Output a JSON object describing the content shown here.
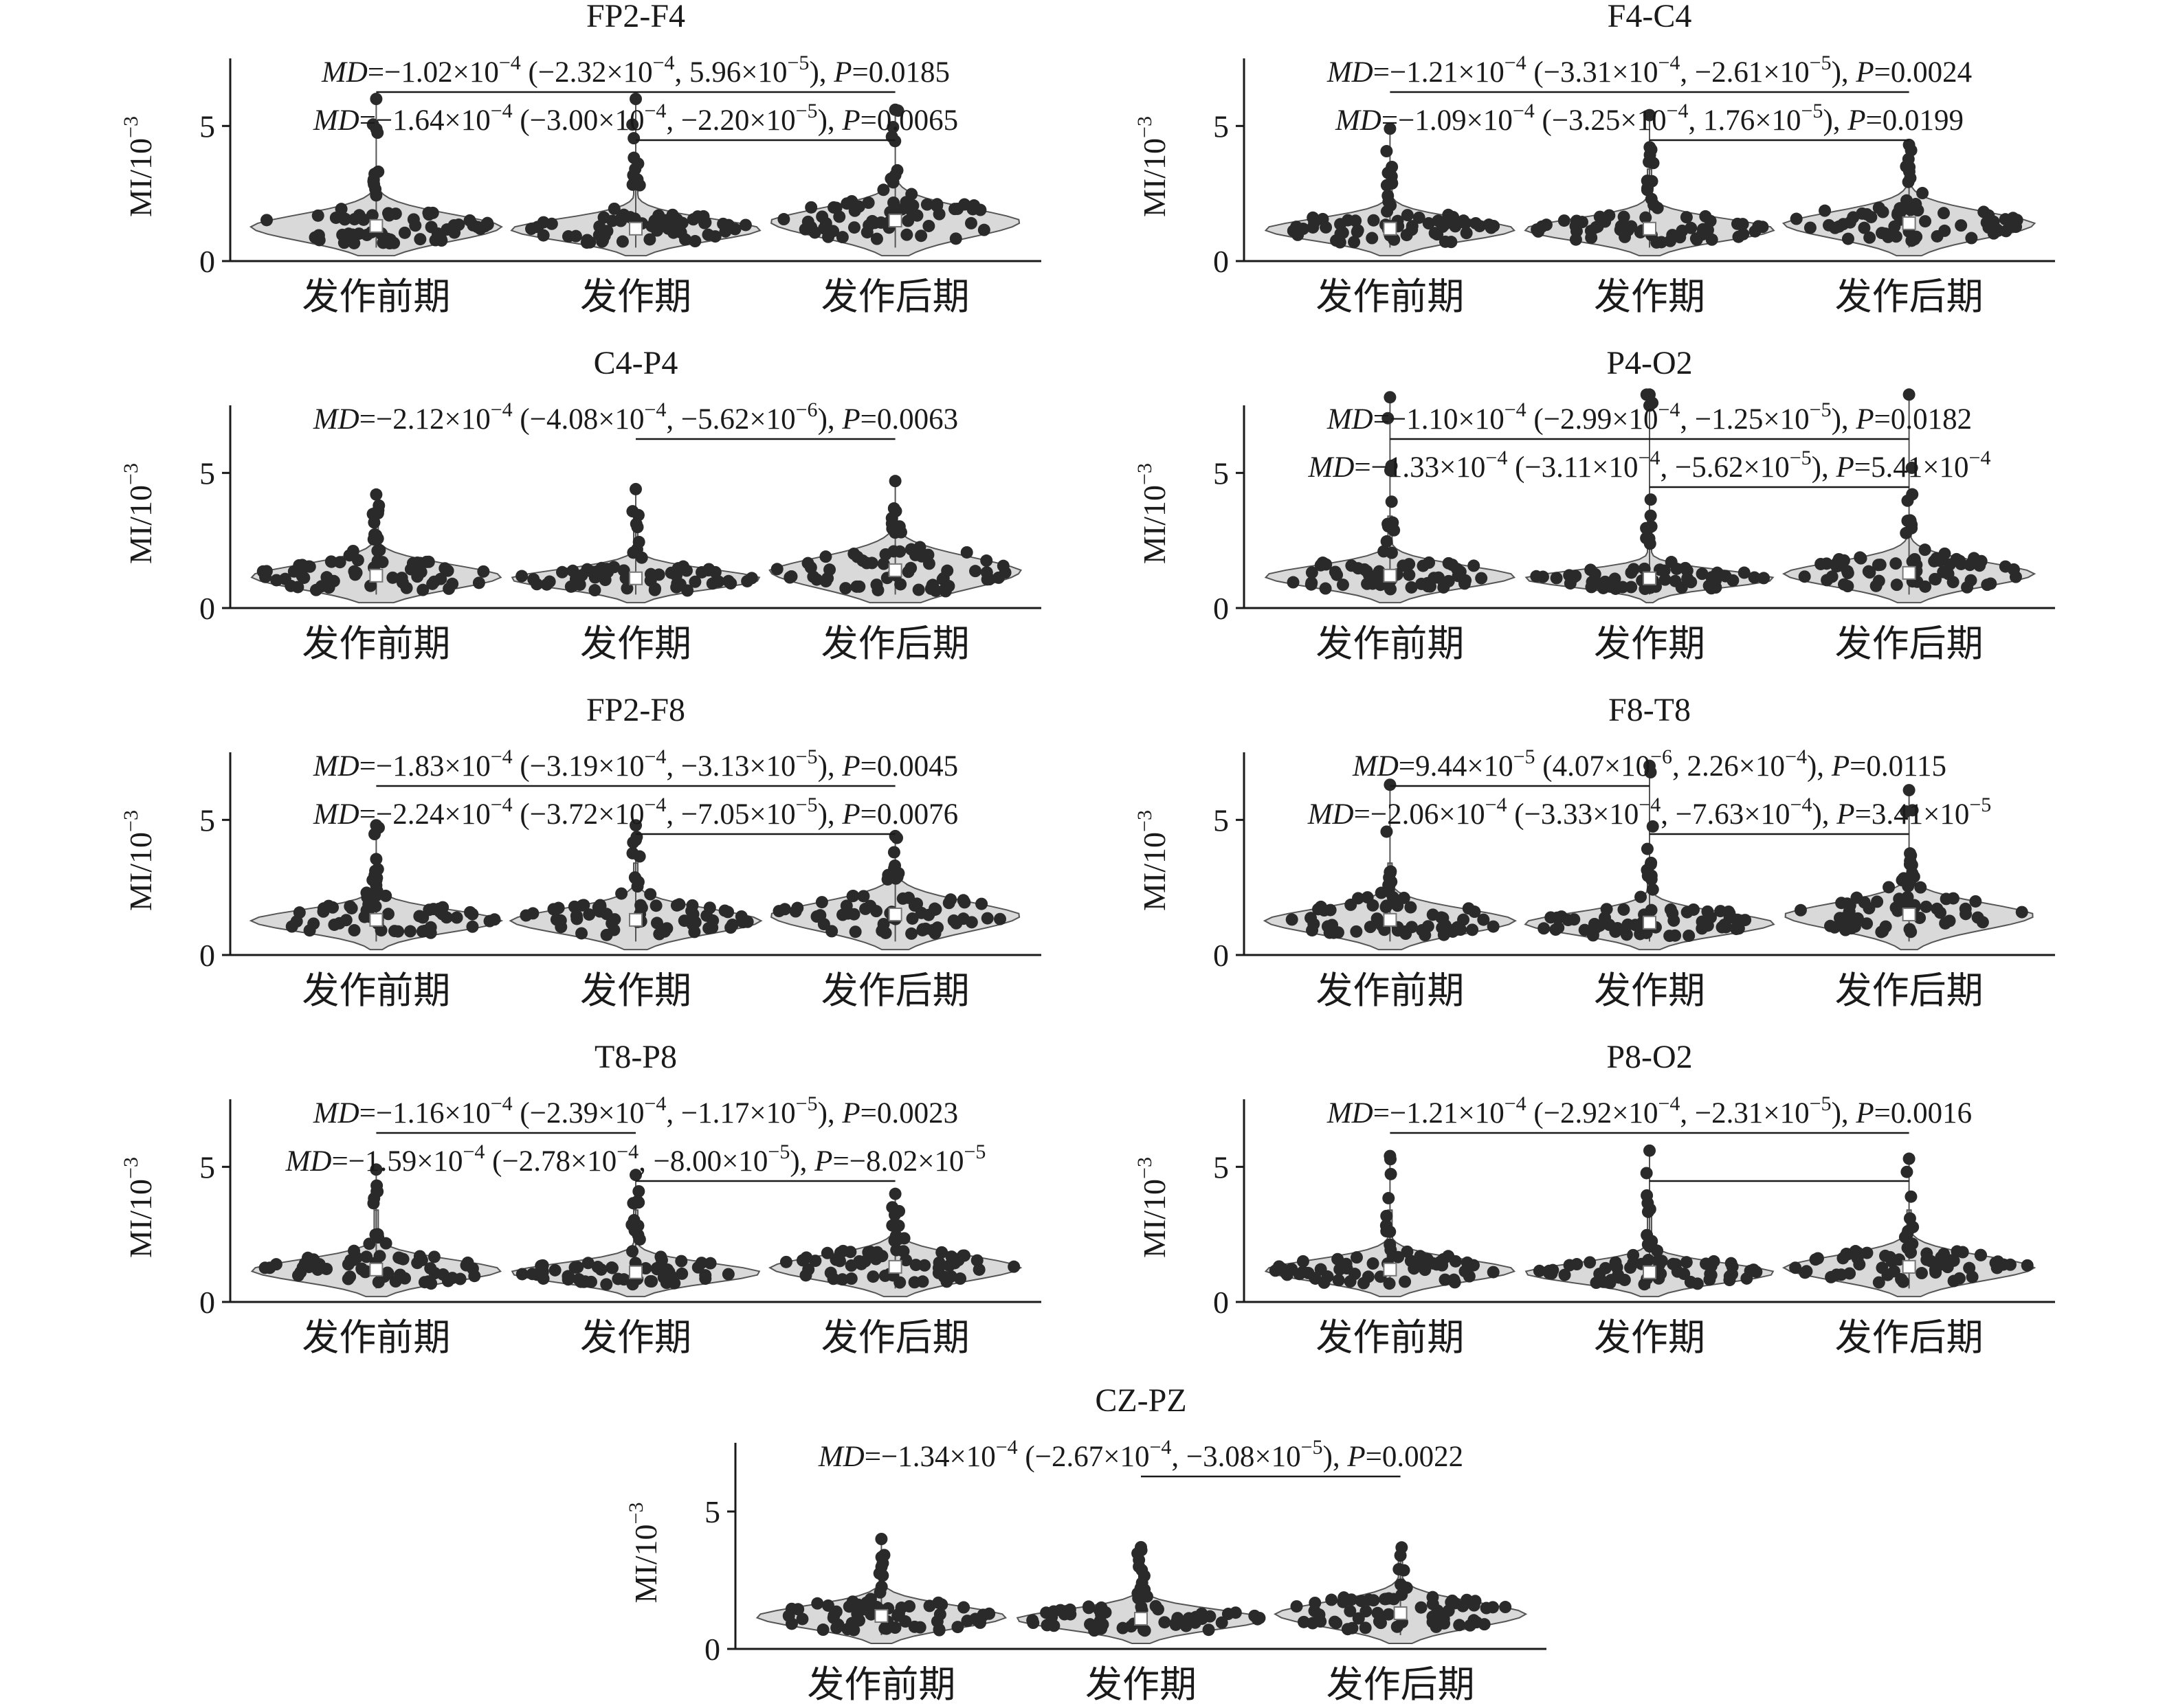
{
  "figure": {
    "y_label_main": "MI/10",
    "y_label_exp": "−3",
    "categories": [
      "发作前期",
      "发作期",
      "发作后期"
    ]
  },
  "chart_data": [
    {
      "type": "violin",
      "title": "FP2-F4",
      "categories": [
        "发作前期",
        "发作期",
        "发作后期"
      ],
      "ylim": [
        0,
        7.5
      ],
      "yticks": [
        0,
        5
      ],
      "medians": [
        1.3,
        1.2,
        1.5
      ],
      "max_points": [
        6.0,
        6.0,
        5.6
      ],
      "spread": [
        1.0,
        0.8,
        1.1
      ],
      "annotations": [
        {
          "lead": "MD",
          "text": "=−1.02×10",
          "exp": "−4",
          "text2": " (−2.32×10",
          "exp2": "−4",
          "text3": ", 5.96×10",
          "exp3": "−5",
          "text4": "), ",
          "plabel": "P",
          "ptext": "=0.0185",
          "ptext_exp": "",
          "from": 0,
          "to": 2
        },
        {
          "lead": "MD",
          "text": "=−1.64×10",
          "exp": "−4",
          "text2": " (−3.00×10",
          "exp2": "−4",
          "text3": ", −2.20×10",
          "exp3": "−5",
          "text4": "), ",
          "plabel": "P",
          "ptext": "=0.0065",
          "ptext_exp": "",
          "from": 1,
          "to": 2
        }
      ]
    },
    {
      "type": "violin",
      "title": "F4-C4",
      "categories": [
        "发作前期",
        "发作期",
        "发作后期"
      ],
      "ylim": [
        0,
        7.5
      ],
      "yticks": [
        0,
        5
      ],
      "medians": [
        1.2,
        1.2,
        1.4
      ],
      "max_points": [
        4.9,
        5.4,
        4.3
      ],
      "spread": [
        0.8,
        0.8,
        1.0
      ],
      "annotations": [
        {
          "lead": "MD",
          "text": "=−1.21×10",
          "exp": "−4",
          "text2": " (−3.31×10",
          "exp2": "−4",
          "text3": ", −2.61×10",
          "exp3": "−5",
          "text4": "), ",
          "plabel": "P",
          "ptext": "=0.0024",
          "ptext_exp": "",
          "from": 0,
          "to": 2
        },
        {
          "lead": "MD",
          "text": "=−1.09×10",
          "exp": "−4",
          "text2": " (−3.25×10",
          "exp2": "−4",
          "text3": ", 1.76×10",
          "exp3": "−5",
          "text4": "), ",
          "plabel": "P",
          "ptext": "=0.0199",
          "ptext_exp": "",
          "from": 1,
          "to": 2
        }
      ]
    },
    {
      "type": "violin",
      "title": "C4-P4",
      "categories": [
        "发作前期",
        "发作期",
        "发作后期"
      ],
      "ylim": [
        0,
        7.5
      ],
      "yticks": [
        0,
        5
      ],
      "medians": [
        1.2,
        1.1,
        1.4
      ],
      "max_points": [
        4.2,
        4.4,
        4.7
      ],
      "spread": [
        0.9,
        0.7,
        1.2
      ],
      "annotations": [
        {
          "lead": "MD",
          "text": "=−2.12×10",
          "exp": "−4",
          "text2": " (−4.08×10",
          "exp2": "−4",
          "text3": ", −5.62×10",
          "exp3": "−6",
          "text4": "), ",
          "plabel": "P",
          "ptext": "=0.0063",
          "ptext_exp": "",
          "from": 1,
          "to": 2
        }
      ]
    },
    {
      "type": "violin",
      "title": "P4-O2",
      "categories": [
        "发作前期",
        "发作期",
        "发作后期"
      ],
      "ylim": [
        0,
        7.5
      ],
      "yticks": [
        0,
        5
      ],
      "medians": [
        1.2,
        1.1,
        1.3
      ],
      "max_points": [
        7.8,
        7.9,
        7.9
      ],
      "spread": [
        0.8,
        0.6,
        0.9
      ],
      "annotations": [
        {
          "lead": "MD",
          "text": "=−1.10×10",
          "exp": "−4",
          "text2": " (−2.99×10",
          "exp2": "−4",
          "text3": ", −1.25×10",
          "exp3": "−5",
          "text4": "), ",
          "plabel": "P",
          "ptext": "=0.0182",
          "ptext_exp": "",
          "from": 0,
          "to": 2
        },
        {
          "lead": "MD",
          "text": "=−1.33×10",
          "exp": "−4",
          "text2": " (−3.11×10",
          "exp2": "−4",
          "text3": ", −5.62×10",
          "exp3": "−5",
          "text4": "), ",
          "plabel": "P",
          "ptext": "=5.41×10",
          "ptext_exp": "−4",
          "from": 1,
          "to": 2
        }
      ]
    },
    {
      "type": "violin",
      "title": "FP2-F8",
      "categories": [
        "发作前期",
        "发作期",
        "发作后期"
      ],
      "ylim": [
        0,
        7.5
      ],
      "yticks": [
        0,
        5
      ],
      "medians": [
        1.3,
        1.3,
        1.5
      ],
      "max_points": [
        4.8,
        4.8,
        4.4
      ],
      "spread": [
        0.8,
        0.9,
        1.1
      ],
      "annotations": [
        {
          "lead": "MD",
          "text": "=−1.83×10",
          "exp": "−4",
          "text2": " (−3.19×10",
          "exp2": "−4",
          "text3": ", −3.13×10",
          "exp3": "−5",
          "text4": "), ",
          "plabel": "P",
          "ptext": "=0.0045",
          "ptext_exp": "",
          "from": 0,
          "to": 2
        },
        {
          "lead": "MD",
          "text": "=−2.24×10",
          "exp": "−4",
          "text2": " (−3.72×10",
          "exp2": "−4",
          "text3": ", −7.05×10",
          "exp3": "−5",
          "text4": "), ",
          "plabel": "P",
          "ptext": "=0.0076",
          "ptext_exp": "",
          "from": 1,
          "to": 2
        }
      ]
    },
    {
      "type": "violin",
      "title": "F8-T8",
      "categories": [
        "发作前期",
        "发作期",
        "发作后期"
      ],
      "ylim": [
        0,
        7.5
      ],
      "yticks": [
        0,
        5
      ],
      "medians": [
        1.3,
        1.2,
        1.5
      ],
      "max_points": [
        6.3,
        7.0,
        6.1
      ],
      "spread": [
        0.9,
        0.8,
        1.0
      ],
      "annotations": [
        {
          "lead": "MD",
          "text": "=9.44×10",
          "exp": "−5",
          "text2": " (4.07×10",
          "exp2": "−6",
          "text3": ", 2.26×10",
          "exp3": "−4",
          "text4": "), ",
          "plabel": "P",
          "ptext": "=0.0115",
          "ptext_exp": "",
          "from": 0,
          "to": 1
        },
        {
          "lead": "MD",
          "text": "=−2.06×10",
          "exp": "−4",
          "text2": " (−3.33×10",
          "exp2": "−4",
          "text3": ", −7.63×10",
          "exp3": "−4",
          "text4": "), ",
          "plabel": "P",
          "ptext": "=3.41×10",
          "ptext_exp": "−5",
          "from": 1,
          "to": 2
        }
      ]
    },
    {
      "type": "violin",
      "title": "T8-P8",
      "categories": [
        "发作前期",
        "发作期",
        "发作后期"
      ],
      "ylim": [
        0,
        7.5
      ],
      "yticks": [
        0,
        5
      ],
      "medians": [
        1.2,
        1.1,
        1.3
      ],
      "max_points": [
        4.9,
        4.7,
        4.0
      ],
      "spread": [
        0.8,
        0.7,
        0.9
      ],
      "annotations": [
        {
          "lead": "MD",
          "text": "=−1.16×10",
          "exp": "−4",
          "text2": " (−2.39×10",
          "exp2": "−4",
          "text3": ", −1.17×10",
          "exp3": "−5",
          "text4": "), ",
          "plabel": "P",
          "ptext": "=0.0023",
          "ptext_exp": "",
          "from": 0,
          "to": 1
        },
        {
          "lead": "MD",
          "text": "=−1.59×10",
          "exp": "−4",
          "text2": " (−2.78×10",
          "exp2": "−4",
          "text3": ", −8.00×10",
          "exp3": "−5",
          "text4": "), ",
          "plabel": "P",
          "ptext": "=−8.02×10",
          "ptext_exp": "−5",
          "from": 1,
          "to": 2
        }
      ]
    },
    {
      "type": "violin",
      "title": "P8-O2",
      "categories": [
        "发作前期",
        "发作期",
        "发作后期"
      ],
      "ylim": [
        0,
        7.5
      ],
      "yticks": [
        0,
        5
      ],
      "medians": [
        1.2,
        1.1,
        1.3
      ],
      "max_points": [
        5.4,
        5.6,
        5.3
      ],
      "spread": [
        0.8,
        0.7,
        0.9
      ],
      "annotations": [
        {
          "lead": "MD",
          "text": "=−1.21×10",
          "exp": "−4",
          "text2": " (−2.92×10",
          "exp2": "−4",
          "text3": ", −2.31×10",
          "exp3": "−5",
          "text4": "), ",
          "plabel": "P",
          "ptext": "=0.0016",
          "ptext_exp": "",
          "from": 0,
          "to": 2
        },
        {
          "lead": "",
          "text": "",
          "exp": "",
          "text2": "",
          "exp2": "",
          "text3": "",
          "exp3": "",
          "text4": "",
          "plabel": "",
          "ptext": "",
          "ptext_exp": "",
          "from": 1,
          "to": 2
        }
      ]
    },
    {
      "type": "violin",
      "title": "CZ-PZ",
      "categories": [
        "发作前期",
        "发作期",
        "发作后期"
      ],
      "ylim": [
        0,
        7.5
      ],
      "yticks": [
        0,
        5
      ],
      "medians": [
        1.2,
        1.1,
        1.3
      ],
      "max_points": [
        4.0,
        3.7,
        3.4
      ],
      "spread": [
        0.8,
        0.7,
        0.9
      ],
      "annotations": [
        {
          "lead": "MD",
          "text": "=−1.34×10",
          "exp": "−4",
          "text2": " (−2.67×10",
          "exp2": "−4",
          "text3": ", −3.08×10",
          "exp3": "−5",
          "text4": "), ",
          "plabel": "P",
          "ptext": "=0.0022",
          "ptext_exp": "",
          "from": 1,
          "to": 2
        }
      ]
    }
  ]
}
